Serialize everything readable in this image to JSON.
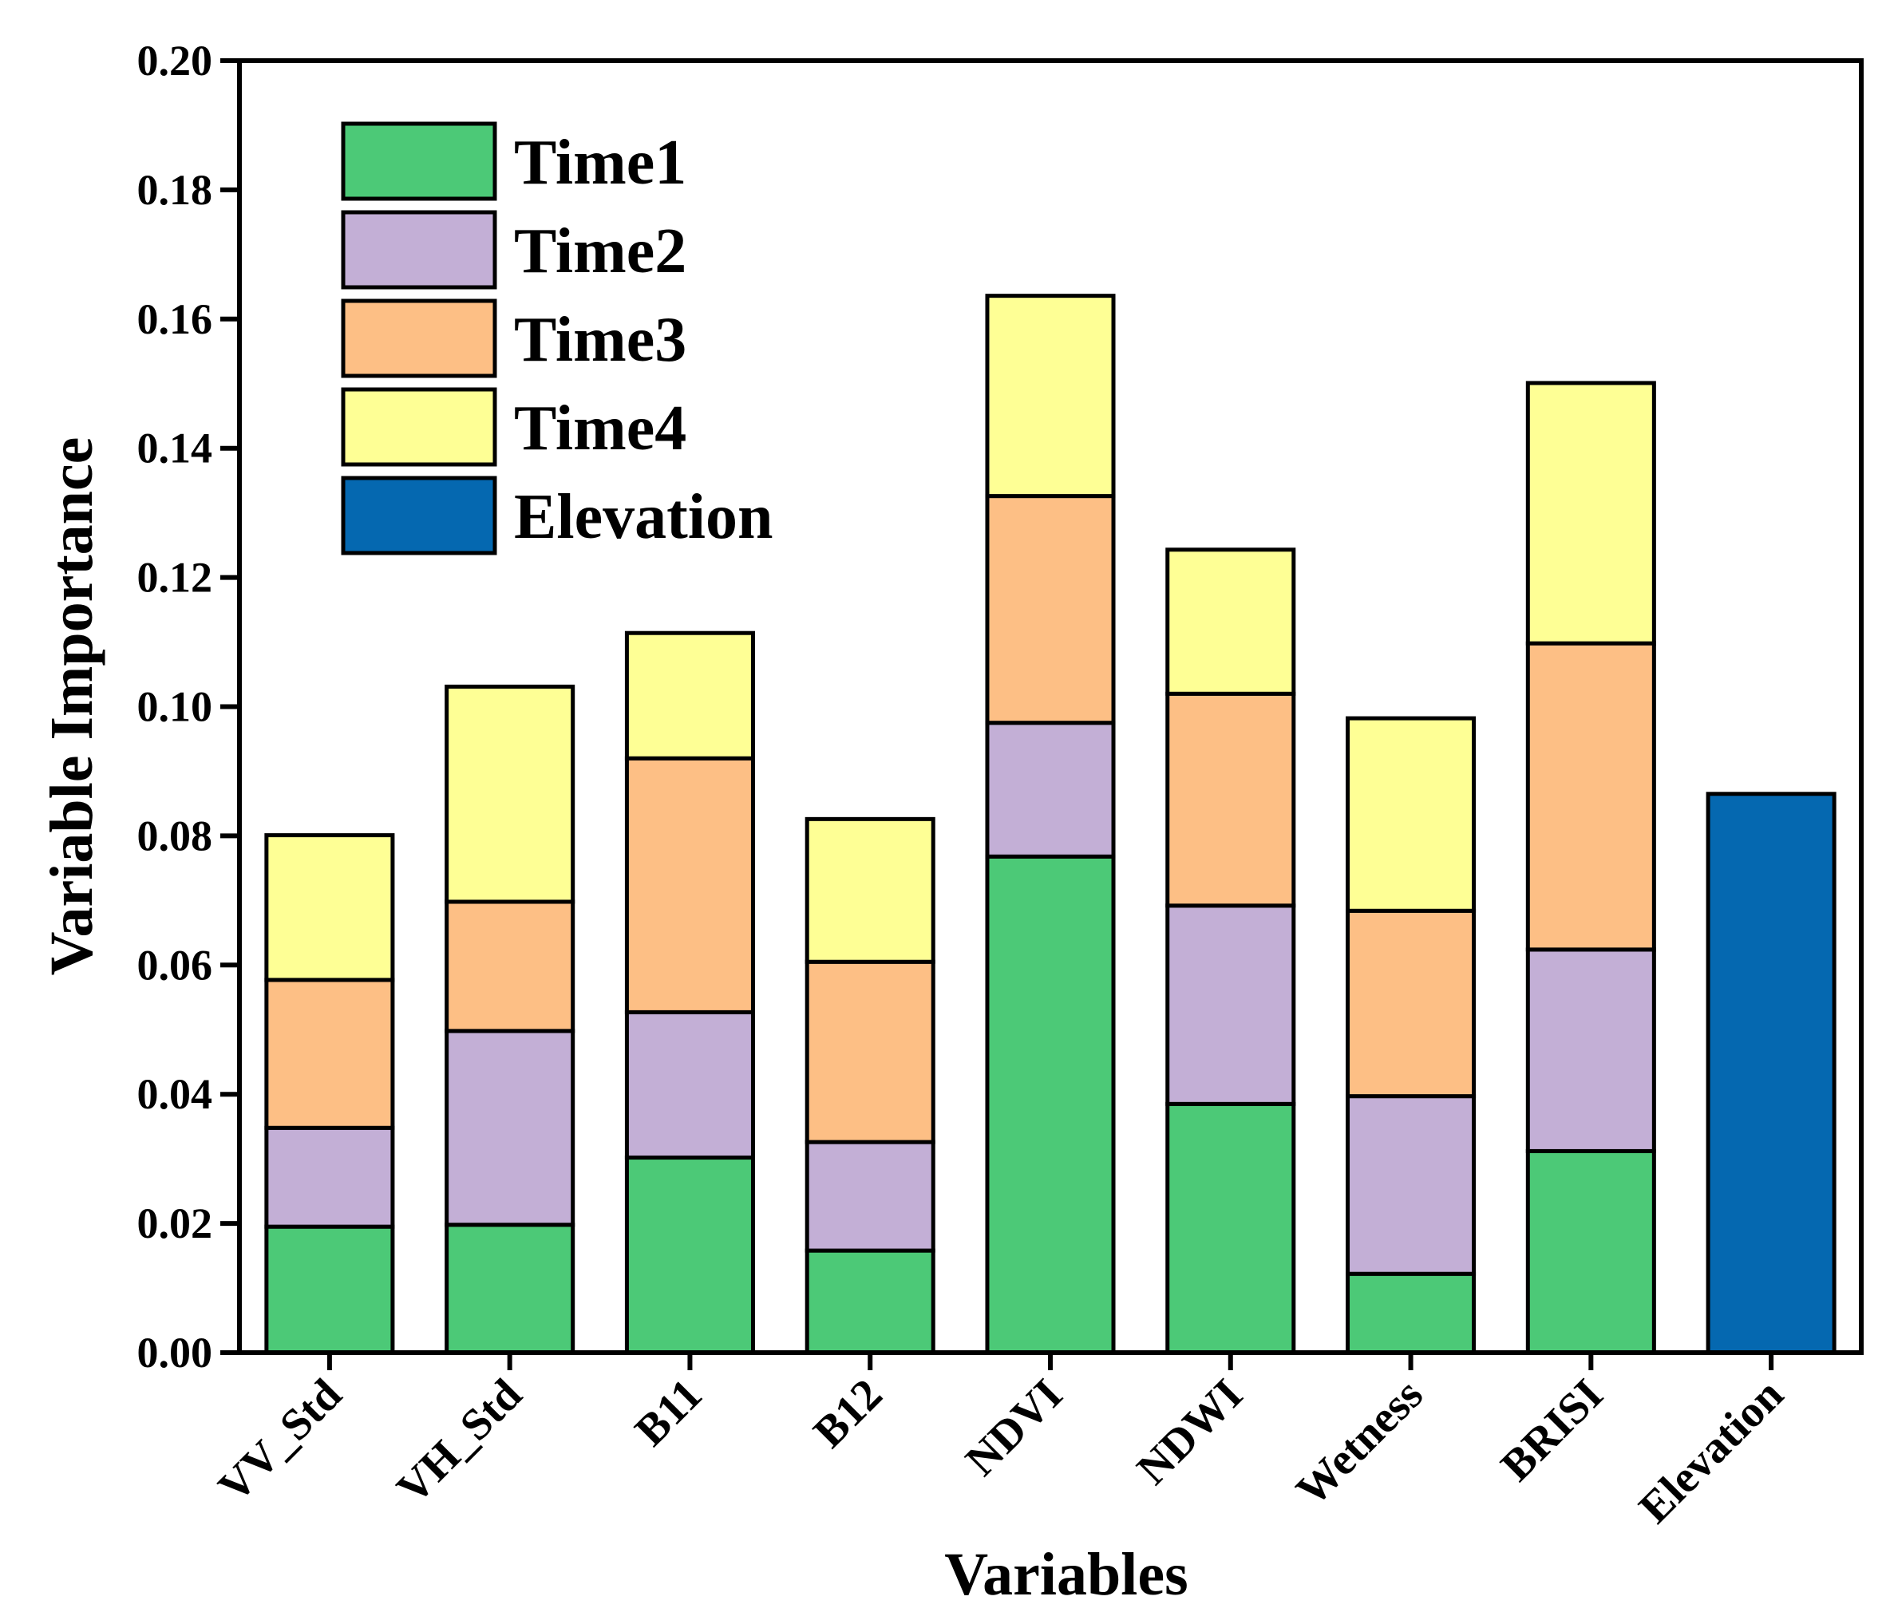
{
  "chart_data": {
    "type": "bar",
    "stacked": true,
    "title": "",
    "xlabel": "Variables",
    "ylabel": "Variable Importance",
    "ylim": [
      0,
      0.2
    ],
    "y_ticks": [
      "0.00",
      "0.02",
      "0.04",
      "0.06",
      "0.08",
      "0.10",
      "0.12",
      "0.14",
      "0.16",
      "0.18",
      "0.20"
    ],
    "y_tick_values": [
      0,
      0.02,
      0.04,
      0.06,
      0.08,
      0.1,
      0.12,
      0.14,
      0.16,
      0.18,
      0.2
    ],
    "categories": [
      "VV_Std",
      "VH_Std",
      "B11",
      "B12",
      "NDVI",
      "NDWI",
      "Wetness",
      "BRISI",
      "Elevation"
    ],
    "legend_position": "top-left",
    "grid": false,
    "series": [
      {
        "name": "Time1",
        "color": "#4cc977",
        "values": [
          0.0195,
          0.0198,
          0.0302,
          0.0158,
          0.0768,
          0.0385,
          0.0122,
          0.0312,
          0
        ]
      },
      {
        "name": "Time2",
        "color": "#c3afd6",
        "values": [
          0.0153,
          0.03,
          0.0225,
          0.0168,
          0.0207,
          0.0307,
          0.0275,
          0.0312,
          0
        ]
      },
      {
        "name": "Time3",
        "color": "#fdbf85",
        "values": [
          0.0229,
          0.02,
          0.0393,
          0.0279,
          0.0351,
          0.0328,
          0.0287,
          0.0474,
          0
        ]
      },
      {
        "name": "Time4",
        "color": "#feff95",
        "values": [
          0.0224,
          0.0333,
          0.0194,
          0.0221,
          0.031,
          0.0223,
          0.0298,
          0.0403,
          0
        ]
      },
      {
        "name": "Elevation",
        "color": "#0568b0",
        "values": [
          0,
          0,
          0,
          0,
          0,
          0,
          0,
          0,
          0.0865
        ]
      }
    ]
  }
}
